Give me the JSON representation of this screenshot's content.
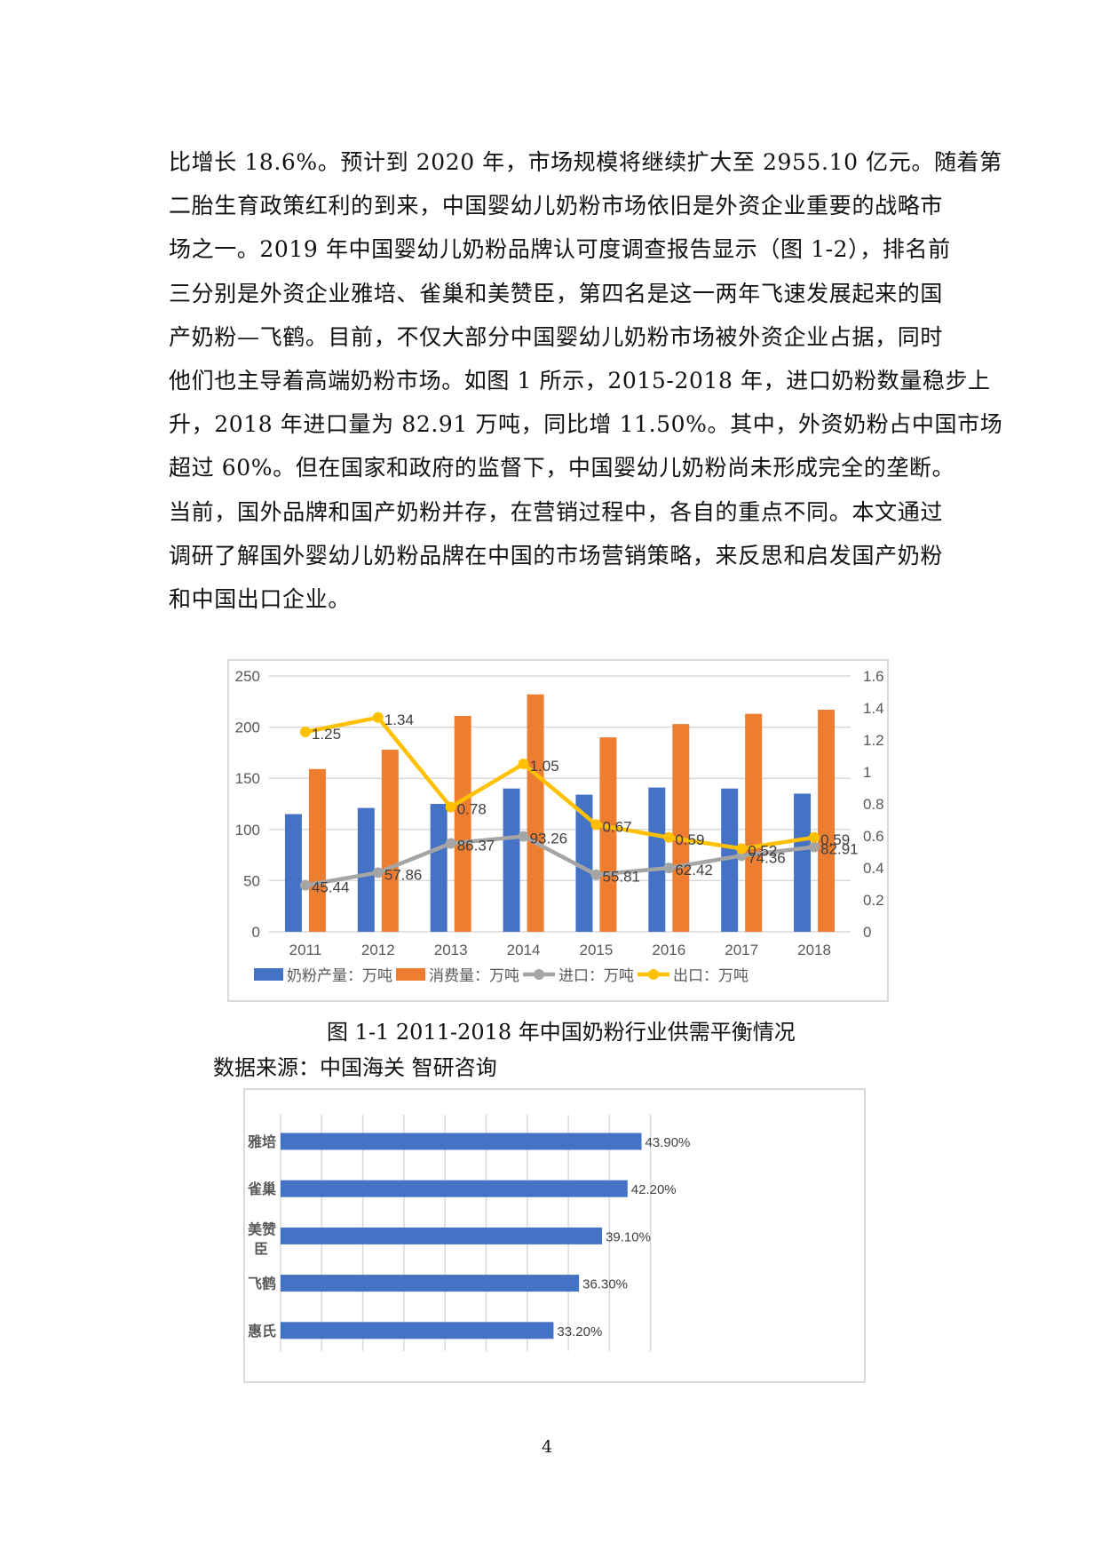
{
  "body_text": {
    "lines": [
      "比增长 18.6%。预计到 2020 年，市场规模将继续扩大至 2955.10 亿元。随着第",
      "二胎生育政策红利的到来，中国婴幼儿奶粉市场依旧是外资企业重要的战略市",
      "场之一。2019 年中国婴幼儿奶粉品牌认可度调查报告显示（图 1-2），排名前",
      "三分别是外资企业雅培、雀巢和美赞臣，第四名是这一两年飞速发展起来的国",
      "产奶粉—飞鹤。目前，不仅大部分中国婴幼儿奶粉市场被外资企业占据，同时",
      "他们也主导着高端奶粉市场。如图 1 所示，2015-2018 年，进口奶粉数量稳步上",
      "升，2018 年进口量为 82.91 万吨，同比增 11.50%。其中，外资奶粉占中国市场",
      "超过 60%。但在国家和政府的监督下，中国婴幼儿奶粉尚未形成完全的垄断。",
      "当前，国外品牌和国产奶粉并存，在营销过程中，各自的重点不同。本文通过",
      "调研了解国外婴幼儿奶粉品牌在中国的市场营销策略，来反思和启发国产奶粉",
      "和中国出口企业。"
    ]
  },
  "figure1": {
    "caption": "图 1-1  2011-2018 年中国奶粉行业供需平衡情况",
    "source": "数据来源：中国海关 智研咨询"
  },
  "page_number": "4",
  "colors": {
    "production": "#4472C4",
    "consumption": "#ED7D31",
    "import": "#A5A5A5",
    "export": "#FFC000",
    "grid": "#D9D9D9",
    "label": "#404040"
  },
  "chart_data": [
    {
      "type": "bar+line",
      "title": "",
      "categories": [
        "2011",
        "2012",
        "2013",
        "2014",
        "2015",
        "2016",
        "2017",
        "2018"
      ],
      "series": [
        {
          "name": "奶粉产量：万吨",
          "type": "bar",
          "axis": "left",
          "values": [
            115,
            121,
            125,
            140,
            134,
            141,
            140,
            135
          ]
        },
        {
          "name": "消费量：万吨",
          "type": "bar",
          "axis": "left",
          "values": [
            159,
            178,
            211,
            232,
            190,
            203,
            213,
            217
          ]
        },
        {
          "name": "进口：万吨",
          "type": "line",
          "axis": "left",
          "values": [
            45.44,
            57.86,
            86.37,
            93.26,
            55.81,
            62.42,
            74.36,
            82.91
          ],
          "labels": [
            "45.44",
            "57.86",
            "86.37",
            "93.26",
            "55.81",
            "62.42",
            "74.36",
            "82.91"
          ]
        },
        {
          "name": "出口：万吨",
          "type": "line",
          "axis": "right",
          "values": [
            1.25,
            1.34,
            0.78,
            1.05,
            0.67,
            0.59,
            0.52,
            0.59
          ],
          "labels": [
            "1.25",
            "1.34",
            "0.78",
            "1.05",
            "0.67",
            "0.59",
            "0.52",
            "0.59"
          ]
        }
      ],
      "y_left": {
        "ylim": [
          0,
          250
        ],
        "ticks": [
          "0",
          "50",
          "100",
          "150",
          "200",
          "250"
        ]
      },
      "y_right": {
        "ylim": [
          0,
          1.6
        ],
        "ticks": [
          "0",
          "0.2",
          "0.4",
          "0.6",
          "0.8",
          "1",
          "1.2",
          "1.4",
          "1.6"
        ]
      },
      "grid": true,
      "legend_position": "bottom"
    },
    {
      "type": "bar",
      "orientation": "horizontal",
      "title": "",
      "categories": [
        "雅培",
        "雀巢",
        "美赞臣",
        "飞鹤",
        "惠氏"
      ],
      "values": [
        43.9,
        42.2,
        39.1,
        36.3,
        33.2
      ],
      "labels": [
        "43.90%",
        "42.20%",
        "39.10%",
        "36.30%",
        "33.20%"
      ],
      "xlim": [
        0,
        45
      ],
      "grid_step": 5,
      "grid": true,
      "axis_tick_labels_shown": false
    }
  ]
}
